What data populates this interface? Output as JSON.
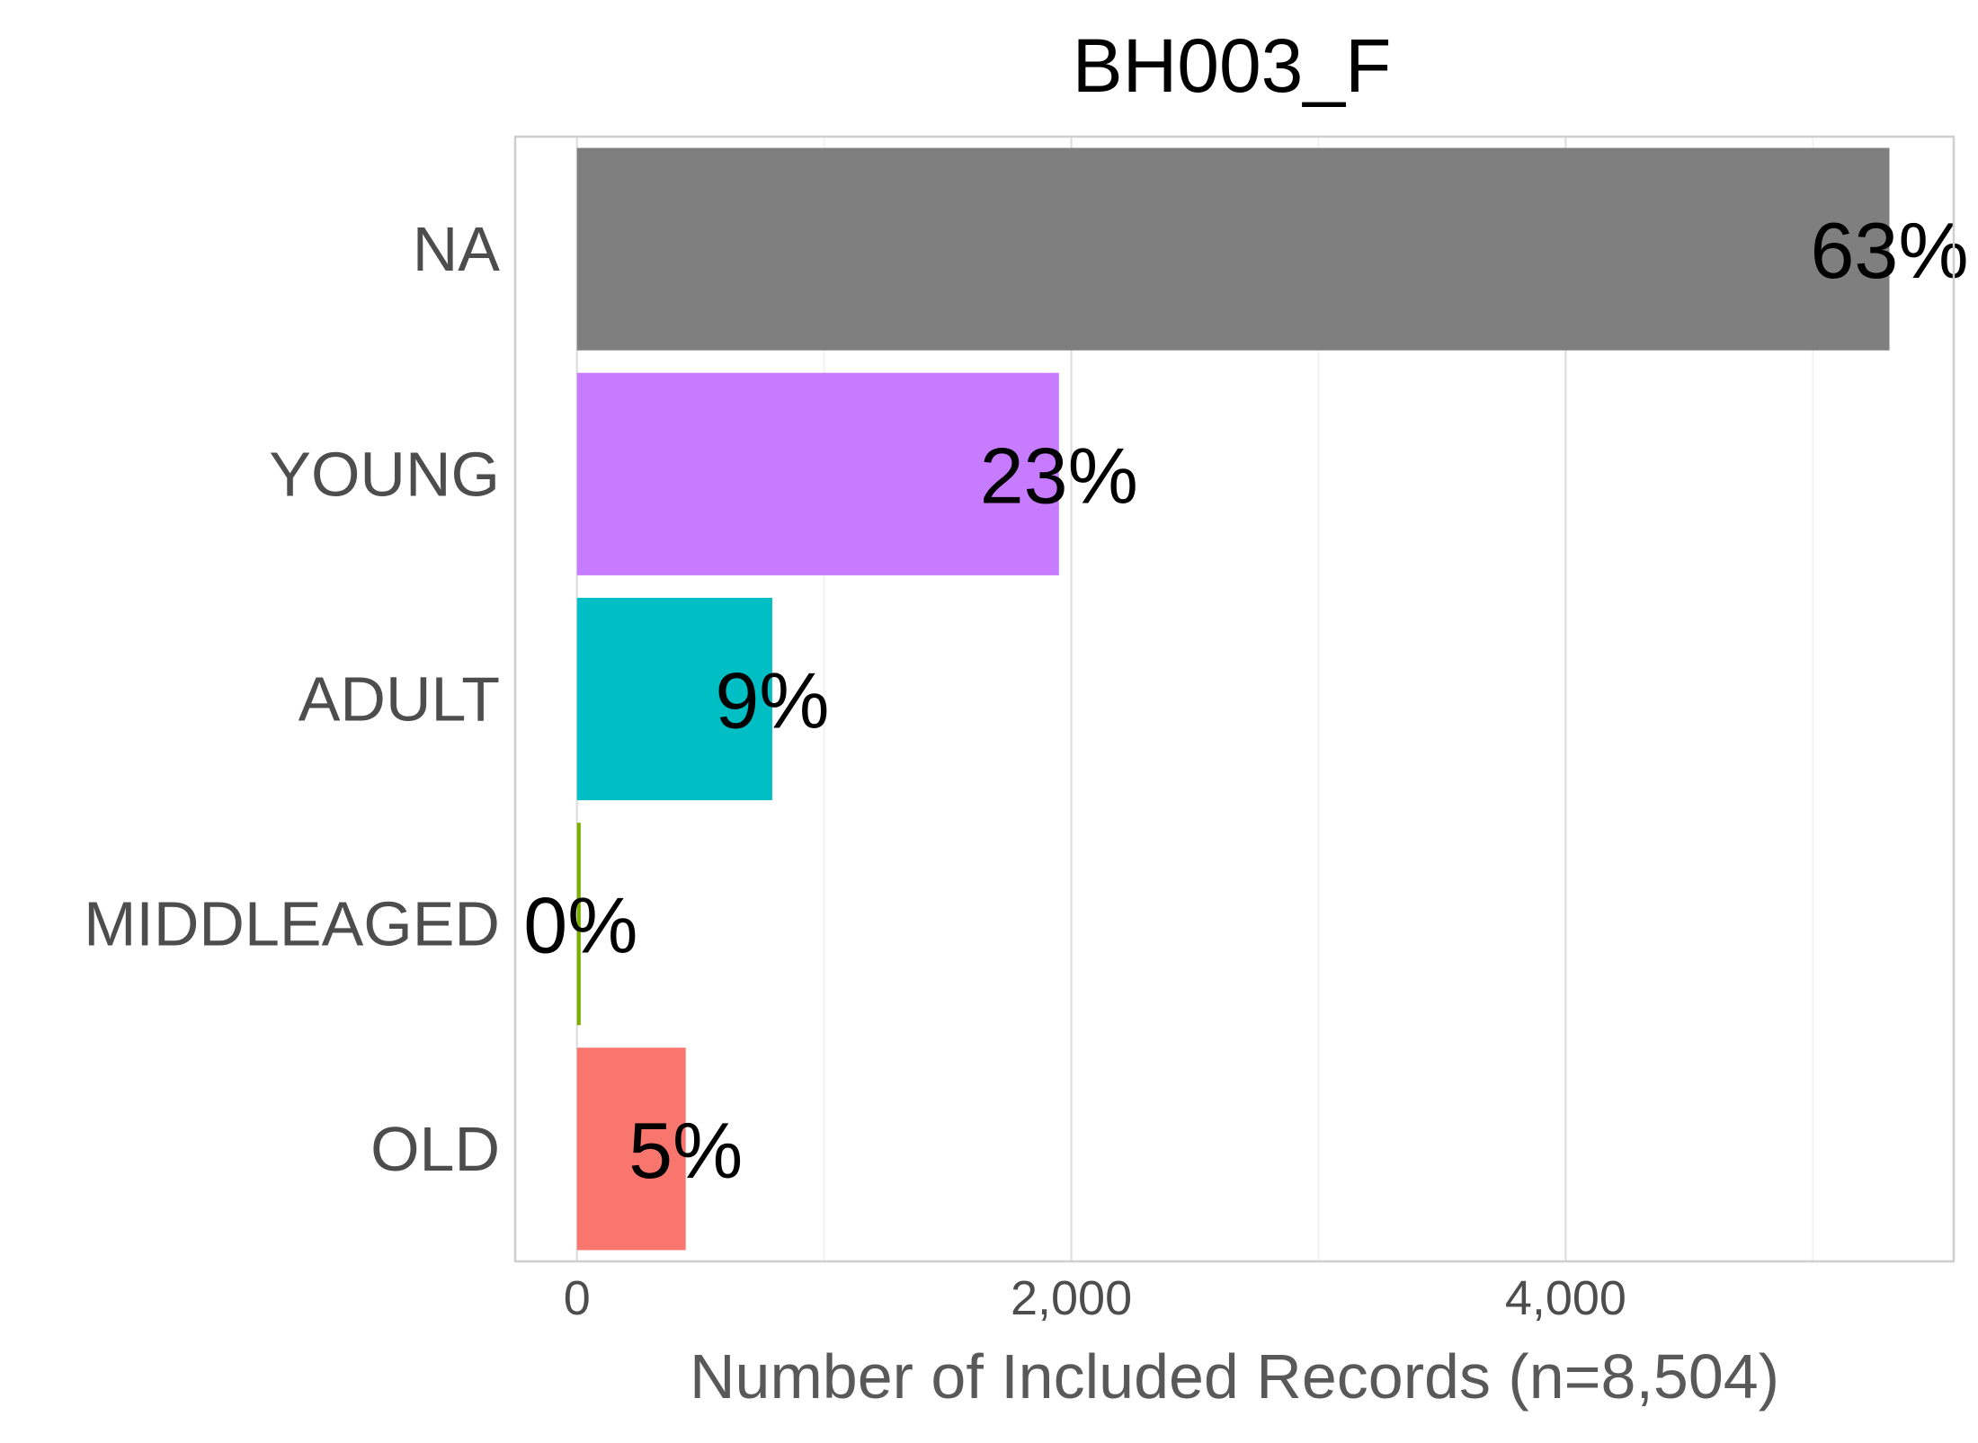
{
  "chart_data": {
    "type": "bar",
    "orientation": "horizontal",
    "title": "BH003_F",
    "xlabel": "Number of Included Records (n=8,504)",
    "ylabel": "",
    "categories": [
      "NA",
      "YOUNG",
      "ADULT",
      "MIDDLEAGED",
      "OLD"
    ],
    "values": [
      5310,
      1950,
      790,
      15,
      440
    ],
    "labels": [
      "63%",
      "23%",
      "9%",
      "0%",
      "5%"
    ],
    "colors": [
      "#7f7f7f",
      "#c77cff",
      "#00bfc4",
      "#7cae00",
      "#f8766d"
    ],
    "xlim": [
      -250,
      5570
    ],
    "xticks": [
      0,
      2000,
      4000
    ],
    "xtick_labels": [
      "0",
      "2,000",
      "4,000"
    ],
    "grid": true,
    "legend": "none"
  }
}
